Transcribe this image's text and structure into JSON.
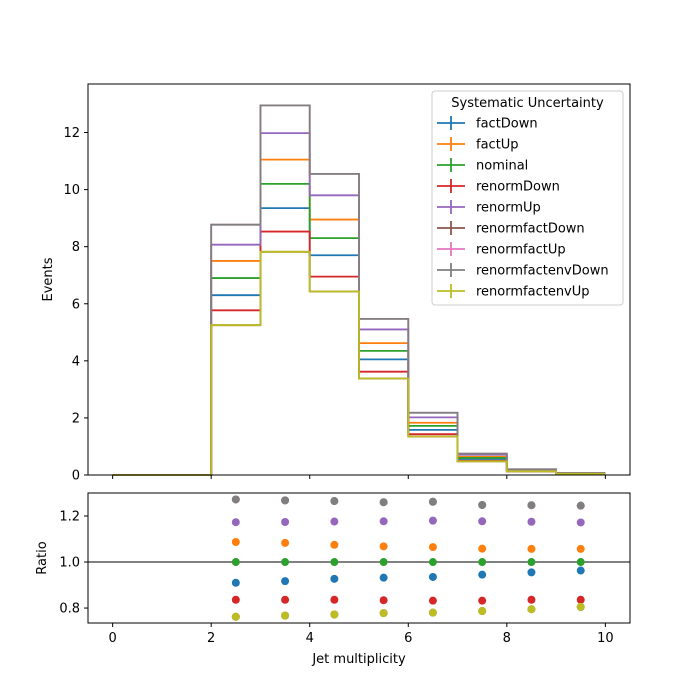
{
  "chart_data": [
    {
      "type": "line",
      "subtype": "step-histogram",
      "bin_edges": [
        0,
        1,
        2,
        3,
        4,
        5,
        6,
        7,
        8,
        9,
        10
      ],
      "ylabel": "Events",
      "ylim": [
        0,
        13.7
      ],
      "xlim": [
        -0.5,
        10.5
      ],
      "xticks": [
        "0",
        "2",
        "4",
        "6",
        "8",
        "10"
      ],
      "yticks": [
        "0",
        "2",
        "4",
        "6",
        "8",
        "10",
        "12"
      ],
      "legend": {
        "title": "Systematic Uncertainty",
        "placement": "top-right"
      },
      "series": [
        {
          "name": "factDown",
          "color": "#1f77b4",
          "values": [
            0,
            0,
            6.3,
            9.35,
            7.7,
            4.05,
            1.58,
            0.56,
            0.16,
            0.05
          ]
        },
        {
          "name": "factUp",
          "color": "#ff7f0e",
          "values": [
            0,
            0,
            7.5,
            11.05,
            8.95,
            4.62,
            1.83,
            0.64,
            0.17,
            0.06
          ]
        },
        {
          "name": "nominal",
          "color": "#2ca02c",
          "values": [
            0,
            0,
            6.9,
            10.2,
            8.3,
            4.35,
            1.72,
            0.6,
            0.16,
            0.055
          ]
        },
        {
          "name": "renormDown",
          "color": "#d62728",
          "values": [
            0,
            0,
            5.77,
            8.53,
            6.95,
            3.62,
            1.43,
            0.5,
            0.13,
            0.045
          ]
        },
        {
          "name": "renormUp",
          "color": "#9467bd",
          "values": [
            0,
            0,
            8.07,
            11.98,
            9.8,
            5.1,
            2.02,
            0.71,
            0.19,
            0.065
          ]
        },
        {
          "name": "renormfactDown",
          "color": "#8c564b",
          "values": [
            0,
            0,
            5.25,
            7.82,
            6.43,
            3.38,
            1.35,
            0.48,
            0.13,
            0.045
          ]
        },
        {
          "name": "renormfactUp",
          "color": "#e377c2",
          "values": [
            0,
            0,
            8.77,
            12.95,
            10.55,
            5.47,
            2.18,
            0.75,
            0.2,
            0.07
          ]
        },
        {
          "name": "renormfactenvDown",
          "color": "#7f7f7f",
          "values": [
            0,
            0,
            8.77,
            12.95,
            10.55,
            5.47,
            2.18,
            0.75,
            0.2,
            0.07
          ]
        },
        {
          "name": "renormfactenvUp",
          "color": "#bcbd22",
          "values": [
            0,
            0,
            5.25,
            7.82,
            6.43,
            3.38,
            1.35,
            0.48,
            0.13,
            0.045
          ]
        }
      ]
    },
    {
      "type": "scatter",
      "xlabel": "Jet multiplicity",
      "ylabel": "Ratio",
      "ylim": [
        0.735,
        1.3
      ],
      "xlim": [
        -0.5,
        10.5
      ],
      "xticks": [
        "0",
        "2",
        "4",
        "6",
        "8",
        "10"
      ],
      "yticks": [
        "0.8",
        "1.0",
        "1.2"
      ],
      "reference_line": 1.0,
      "x": [
        2.5,
        3.5,
        4.5,
        5.5,
        6.5,
        7.5,
        8.5,
        9.5
      ],
      "series": [
        {
          "name": "factDown",
          "color": "#1f77b4",
          "values": [
            0.91,
            0.917,
            0.927,
            0.932,
            0.935,
            0.945,
            0.955,
            0.963
          ]
        },
        {
          "name": "factUp",
          "color": "#ff7f0e",
          "values": [
            1.087,
            1.083,
            1.075,
            1.068,
            1.065,
            1.058,
            1.057,
            1.057
          ]
        },
        {
          "name": "nominal",
          "color": "#2ca02c",
          "values": [
            1.0,
            1.0,
            1.0,
            1.0,
            1.0,
            1.0,
            1.0,
            1.0
          ]
        },
        {
          "name": "renormDown",
          "color": "#d62728",
          "values": [
            0.836,
            0.836,
            0.836,
            0.834,
            0.832,
            0.832,
            0.836,
            0.836
          ]
        },
        {
          "name": "renormUp",
          "color": "#9467bd",
          "values": [
            1.173,
            1.174,
            1.176,
            1.177,
            1.18,
            1.177,
            1.175,
            1.172
          ]
        },
        {
          "name": "renormfactDown",
          "color": "#8c564b",
          "values": [
            0.762,
            0.767,
            0.772,
            0.778,
            0.78,
            0.787,
            0.795,
            0.805
          ]
        },
        {
          "name": "renormfactUp",
          "color": "#e377c2",
          "values": [
            1.272,
            1.268,
            1.265,
            1.26,
            1.262,
            1.248,
            1.247,
            1.245
          ]
        },
        {
          "name": "renormfactenvDown",
          "color": "#7f7f7f",
          "values": [
            1.272,
            1.268,
            1.265,
            1.26,
            1.262,
            1.248,
            1.247,
            1.245
          ]
        },
        {
          "name": "renormfactenvUp",
          "color": "#bcbd22",
          "values": [
            0.762,
            0.767,
            0.772,
            0.778,
            0.78,
            0.787,
            0.795,
            0.805
          ]
        }
      ]
    }
  ]
}
